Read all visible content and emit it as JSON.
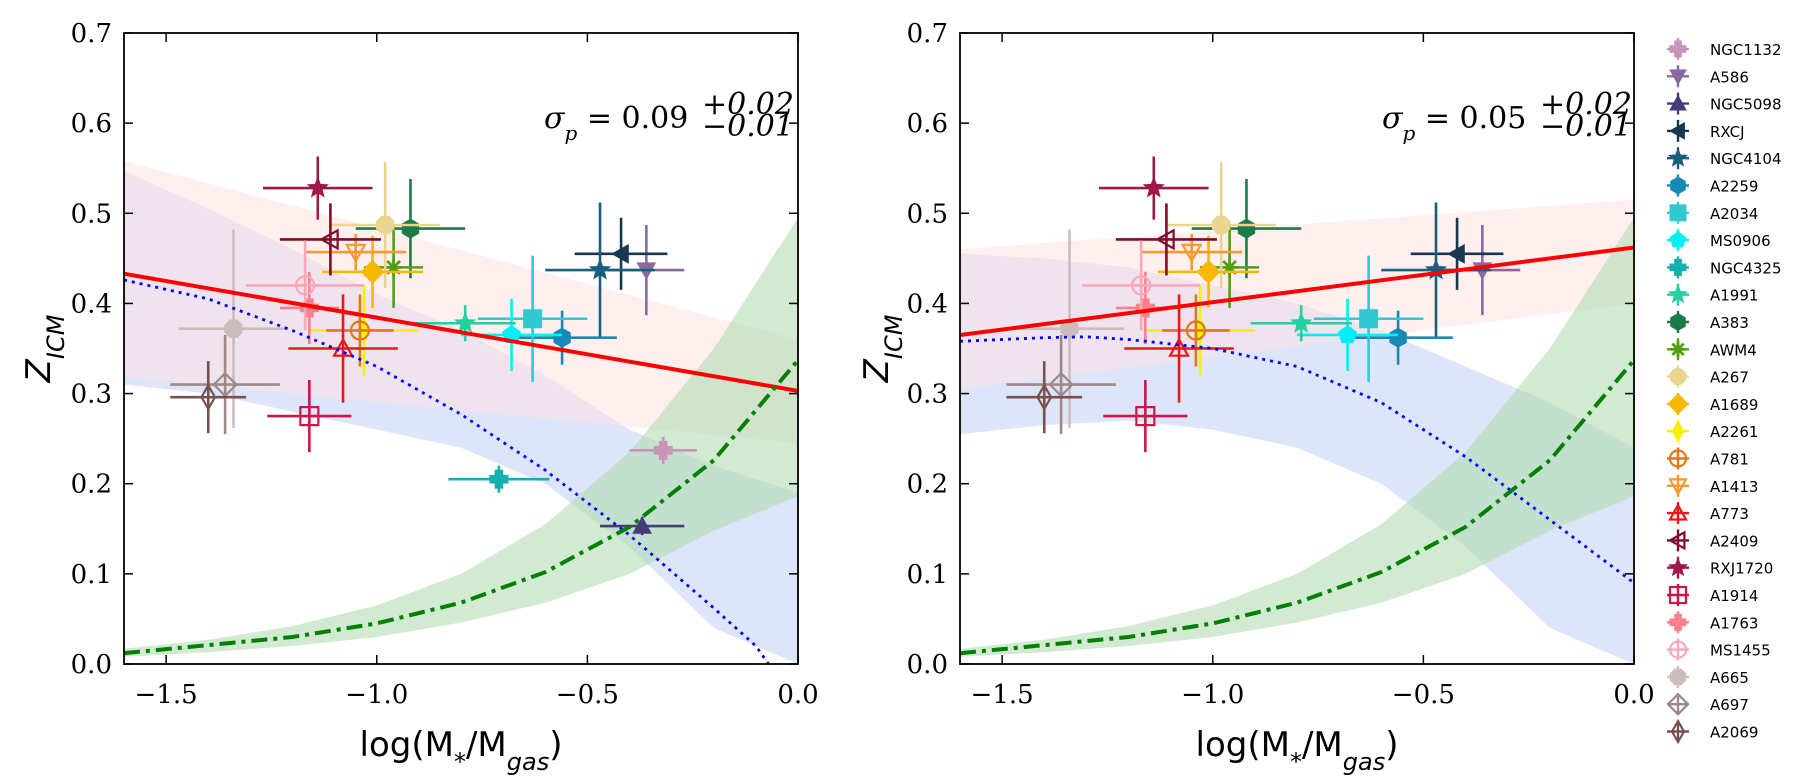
{
  "chart_data": [
    {
      "type": "scatter",
      "panel": "left",
      "xlabel": "log(M*/Mgas)",
      "xlabel_main": "log(M",
      "xlabel_sub1": "*",
      "xlabel_mid": "/M",
      "xlabel_sub2": "gas",
      "xlabel_close": ")",
      "ylabel": "Z_ICM",
      "ylabel_main": "Z",
      "ylabel_sub": "ICM",
      "xlim": [
        -1.6,
        0.0
      ],
      "ylim": [
        0.0,
        0.7
      ],
      "xticks": [
        -1.5,
        -1.0,
        -0.5,
        0.0
      ],
      "xticklabels": [
        "−1.5",
        "−1.0",
        "−0.5",
        "0.0"
      ],
      "yticks": [
        0.0,
        0.1,
        0.2,
        0.3,
        0.4,
        0.5,
        0.6,
        0.7
      ],
      "yticklabels": [
        "0.0",
        "0.1",
        "0.2",
        "0.3",
        "0.4",
        "0.5",
        "0.6",
        "0.7"
      ],
      "annotation": {
        "lhs": "σ",
        "lhs_sub": "p",
        "eq": " = 0.09",
        "sup": "+0.02",
        "sub": "−0.01"
      },
      "red_fit": {
        "x": [
          -1.6,
          0.0
        ],
        "y": [
          0.433,
          0.303
        ]
      },
      "red_band": {
        "x": [
          -1.6,
          0.0
        ],
        "upper": [
          0.558,
          0.36
        ],
        "lower": [
          0.318,
          0.245
        ]
      },
      "blue_curve": {
        "x": [
          -1.6,
          -1.4,
          -1.2,
          -1.0,
          -0.8,
          -0.6,
          -0.4,
          -0.2,
          -0.1,
          -0.07
        ],
        "y": [
          0.426,
          0.405,
          0.37,
          0.33,
          0.277,
          0.215,
          0.143,
          0.062,
          0.02,
          0.0
        ]
      },
      "blue_band": {
        "x": [
          -1.6,
          -1.4,
          -1.2,
          -1.0,
          -0.8,
          -0.6,
          -0.4,
          -0.2,
          0.0
        ],
        "upper": [
          0.547,
          0.505,
          0.46,
          0.41,
          0.37,
          0.32,
          0.26,
          0.22,
          0.19
        ],
        "lower": [
          0.31,
          0.3,
          0.28,
          0.26,
          0.24,
          0.2,
          0.13,
          0.04,
          0.0
        ]
      },
      "green_curve": {
        "x": [
          -1.6,
          -1.4,
          -1.2,
          -1.0,
          -0.8,
          -0.6,
          -0.4,
          -0.2,
          0.0
        ],
        "y": [
          0.012,
          0.021,
          0.03,
          0.045,
          0.068,
          0.102,
          0.152,
          0.226,
          0.337
        ]
      },
      "green_band": {
        "x": [
          -1.6,
          -1.4,
          -1.2,
          -1.0,
          -0.8,
          -0.6,
          -0.4,
          -0.2,
          0.0
        ],
        "upper": [
          0.017,
          0.027,
          0.042,
          0.065,
          0.1,
          0.155,
          0.235,
          0.35,
          0.495
        ],
        "lower": [
          0.008,
          0.013,
          0.02,
          0.03,
          0.046,
          0.068,
          0.1,
          0.148,
          0.186
        ]
      },
      "points": [
        {
          "name": "NGC1132",
          "x": -0.32,
          "y": 0.237,
          "xerr": 0.08,
          "yerr": 0.015
        },
        {
          "name": "A586",
          "x": -0.36,
          "y": 0.437,
          "xerr": 0.09,
          "yerr": 0.05
        },
        {
          "name": "NGC5098",
          "x": -0.37,
          "y": 0.153,
          "xerr": 0.1,
          "yerr": 0.01
        },
        {
          "name": "RXCJ",
          "x": -0.42,
          "y": 0.455,
          "xerr": 0.11,
          "yerr": 0.04
        },
        {
          "name": "NGC4104",
          "x": -0.47,
          "y": 0.437,
          "xerr": 0.13,
          "yerr": 0.075
        },
        {
          "name": "A2259",
          "x": -0.56,
          "y": 0.362,
          "xerr": 0.13,
          "yerr": 0.03
        },
        {
          "name": "A2034",
          "x": -0.63,
          "y": 0.383,
          "xerr": 0.13,
          "yerr": 0.07
        },
        {
          "name": "MS0906",
          "x": -0.68,
          "y": 0.365,
          "xerr": 0.12,
          "yerr": 0.04
        },
        {
          "name": "NGC4325",
          "x": -0.71,
          "y": 0.205,
          "xerr": 0.12,
          "yerr": 0.015
        },
        {
          "name": "A1991",
          "x": -0.79,
          "y": 0.378,
          "xerr": 0.12,
          "yerr": 0.02
        },
        {
          "name": "A383",
          "x": -0.92,
          "y": 0.483,
          "xerr": 0.13,
          "yerr": 0.055
        },
        {
          "name": "AWM4",
          "x": -0.96,
          "y": 0.44,
          "xerr": 0.07,
          "yerr": 0.045
        },
        {
          "name": "A267",
          "x": -0.98,
          "y": 0.487,
          "xerr": 0.13,
          "yerr": 0.07
        },
        {
          "name": "A1689",
          "x": -1.01,
          "y": 0.435,
          "xerr": 0.12,
          "yerr": 0.04
        },
        {
          "name": "A2261",
          "x": -1.03,
          "y": 0.37,
          "xerr": 0.13,
          "yerr": 0.05
        },
        {
          "name": "A781",
          "x": -1.04,
          "y": 0.37,
          "xerr": 0.08,
          "yerr": 0.04
        },
        {
          "name": "A1413",
          "x": -1.05,
          "y": 0.457,
          "xerr": 0.12,
          "yerr": 0.02
        },
        {
          "name": "A773",
          "x": -1.08,
          "y": 0.35,
          "xerr": 0.13,
          "yerr": 0.06
        },
        {
          "name": "A2409",
          "x": -1.11,
          "y": 0.471,
          "xerr": 0.12,
          "yerr": 0.04
        },
        {
          "name": "RXJ1720",
          "x": -1.14,
          "y": 0.528,
          "xerr": 0.13,
          "yerr": 0.035
        },
        {
          "name": "A1914",
          "x": -1.16,
          "y": 0.275,
          "xerr": 0.1,
          "yerr": 0.04
        },
        {
          "name": "A1763",
          "x": -1.16,
          "y": 0.395,
          "xerr": 0.07,
          "yerr": 0.04
        },
        {
          "name": "MS1455",
          "x": -1.17,
          "y": 0.42,
          "xerr": 0.14,
          "yerr": 0.05
        },
        {
          "name": "A665",
          "x": -1.34,
          "y": 0.372,
          "xerr": 0.13,
          "yerr": 0.11
        },
        {
          "name": "A697",
          "x": -1.36,
          "y": 0.31,
          "xerr": 0.13,
          "yerr": 0.055
        },
        {
          "name": "A2069",
          "x": -1.4,
          "y": 0.296,
          "xerr": 0.09,
          "yerr": 0.04
        }
      ]
    },
    {
      "type": "scatter",
      "panel": "right",
      "xlabel": "log(M*/Mgas)",
      "xlabel_main": "log(M",
      "xlabel_sub1": "*",
      "xlabel_mid": "/M",
      "xlabel_sub2": "gas",
      "xlabel_close": ")",
      "ylabel": "Z_ICM",
      "ylabel_main": "Z",
      "ylabel_sub": "ICM",
      "xlim": [
        -1.6,
        0.0
      ],
      "ylim": [
        0.0,
        0.7
      ],
      "xticks": [
        -1.5,
        -1.0,
        -0.5,
        0.0
      ],
      "xticklabels": [
        "−1.5",
        "−1.0",
        "−0.5",
        "0.0"
      ],
      "yticks": [
        0.0,
        0.1,
        0.2,
        0.3,
        0.4,
        0.5,
        0.6,
        0.7
      ],
      "yticklabels": [
        "0.0",
        "0.1",
        "0.2",
        "0.3",
        "0.4",
        "0.5",
        "0.6",
        "0.7"
      ],
      "annotation": {
        "lhs": "σ",
        "lhs_sub": "p",
        "eq": " = 0.05",
        "sup": "+0.02",
        "sub": "−0.01"
      },
      "red_fit": {
        "x": [
          -1.6,
          0.0
        ],
        "y": [
          0.365,
          0.462
        ]
      },
      "red_band": {
        "x": [
          -1.6,
          0.0
        ],
        "upper": [
          0.46,
          0.515
        ],
        "lower": [
          0.305,
          0.4
        ]
      },
      "blue_curve": {
        "x": [
          -1.6,
          -1.4,
          -1.3,
          -1.2,
          -1.0,
          -0.8,
          -0.6,
          -0.4,
          -0.2,
          0.0
        ],
        "y": [
          0.358,
          0.362,
          0.363,
          0.36,
          0.35,
          0.33,
          0.29,
          0.23,
          0.16,
          0.09
        ]
      },
      "blue_band": {
        "x": [
          -1.6,
          -1.4,
          -1.2,
          -1.0,
          -0.8,
          -0.6,
          -0.4,
          -0.2,
          0.0
        ],
        "upper": [
          0.455,
          0.45,
          0.44,
          0.42,
          0.4,
          0.37,
          0.33,
          0.29,
          0.24
        ],
        "lower": [
          0.255,
          0.265,
          0.27,
          0.26,
          0.24,
          0.2,
          0.13,
          0.04,
          0.0
        ]
      },
      "green_curve": {
        "x": [
          -1.6,
          -1.4,
          -1.2,
          -1.0,
          -0.8,
          -0.6,
          -0.4,
          -0.2,
          0.0
        ],
        "y": [
          0.012,
          0.021,
          0.03,
          0.045,
          0.068,
          0.102,
          0.152,
          0.226,
          0.337
        ]
      },
      "green_band": {
        "x": [
          -1.6,
          -1.4,
          -1.2,
          -1.0,
          -0.8,
          -0.6,
          -0.4,
          -0.2,
          0.0
        ],
        "upper": [
          0.017,
          0.027,
          0.042,
          0.065,
          0.1,
          0.155,
          0.235,
          0.35,
          0.495
        ],
        "lower": [
          0.008,
          0.013,
          0.02,
          0.03,
          0.046,
          0.068,
          0.1,
          0.148,
          0.186
        ]
      },
      "points": [
        {
          "name": "A586",
          "x": -0.36,
          "y": 0.437,
          "xerr": 0.09,
          "yerr": 0.05
        },
        {
          "name": "RXCJ",
          "x": -0.42,
          "y": 0.455,
          "xerr": 0.11,
          "yerr": 0.04
        },
        {
          "name": "NGC4104",
          "x": -0.47,
          "y": 0.437,
          "xerr": 0.13,
          "yerr": 0.075
        },
        {
          "name": "A2259",
          "x": -0.56,
          "y": 0.362,
          "xerr": 0.13,
          "yerr": 0.03
        },
        {
          "name": "A2034",
          "x": -0.63,
          "y": 0.383,
          "xerr": 0.13,
          "yerr": 0.07
        },
        {
          "name": "MS0906",
          "x": -0.68,
          "y": 0.365,
          "xerr": 0.12,
          "yerr": 0.04
        },
        {
          "name": "A1991",
          "x": -0.79,
          "y": 0.378,
          "xerr": 0.12,
          "yerr": 0.02
        },
        {
          "name": "A383",
          "x": -0.92,
          "y": 0.483,
          "xerr": 0.13,
          "yerr": 0.055
        },
        {
          "name": "AWM4",
          "x": -0.96,
          "y": 0.44,
          "xerr": 0.07,
          "yerr": 0.045
        },
        {
          "name": "A267",
          "x": -0.98,
          "y": 0.487,
          "xerr": 0.13,
          "yerr": 0.07
        },
        {
          "name": "A1689",
          "x": -1.01,
          "y": 0.435,
          "xerr": 0.12,
          "yerr": 0.04
        },
        {
          "name": "A2261",
          "x": -1.03,
          "y": 0.37,
          "xerr": 0.13,
          "yerr": 0.05
        },
        {
          "name": "A781",
          "x": -1.04,
          "y": 0.37,
          "xerr": 0.08,
          "yerr": 0.04
        },
        {
          "name": "A1413",
          "x": -1.05,
          "y": 0.457,
          "xerr": 0.12,
          "yerr": 0.02
        },
        {
          "name": "A773",
          "x": -1.08,
          "y": 0.35,
          "xerr": 0.13,
          "yerr": 0.06
        },
        {
          "name": "A2409",
          "x": -1.11,
          "y": 0.471,
          "xerr": 0.12,
          "yerr": 0.04
        },
        {
          "name": "RXJ1720",
          "x": -1.14,
          "y": 0.528,
          "xerr": 0.13,
          "yerr": 0.035
        },
        {
          "name": "A1914",
          "x": -1.16,
          "y": 0.275,
          "xerr": 0.1,
          "yerr": 0.04
        },
        {
          "name": "A1763",
          "x": -1.16,
          "y": 0.395,
          "xerr": 0.07,
          "yerr": 0.04
        },
        {
          "name": "MS1455",
          "x": -1.17,
          "y": 0.42,
          "xerr": 0.14,
          "yerr": 0.05
        },
        {
          "name": "A665",
          "x": -1.34,
          "y": 0.372,
          "xerr": 0.13,
          "yerr": 0.11
        },
        {
          "name": "A697",
          "x": -1.36,
          "y": 0.31,
          "xerr": 0.13,
          "yerr": 0.055
        },
        {
          "name": "A2069",
          "x": -1.4,
          "y": 0.296,
          "xerr": 0.09,
          "yerr": 0.04
        }
      ]
    }
  ],
  "legend": {
    "placement": "right",
    "entries": [
      {
        "name": "NGC1132",
        "color": "#c994b6",
        "marker": "plus-filled"
      },
      {
        "name": "A586",
        "color": "#8a6a9e",
        "marker": "triangle-down"
      },
      {
        "name": "NGC5098",
        "color": "#463a78",
        "marker": "triangle-up"
      },
      {
        "name": "RXCJ",
        "color": "#17384e",
        "marker": "triangle-left"
      },
      {
        "name": "NGC4104",
        "color": "#1a5e7e",
        "marker": "star"
      },
      {
        "name": "A2259",
        "color": "#1888b5",
        "marker": "hexagon"
      },
      {
        "name": "A2034",
        "color": "#32c8d0",
        "marker": "square"
      },
      {
        "name": "MS0906",
        "color": "#00f0f8",
        "marker": "pentagon"
      },
      {
        "name": "NGC4325",
        "color": "#12b0b0",
        "marker": "plus-filled"
      },
      {
        "name": "A1991",
        "color": "#22d0a0",
        "marker": "star"
      },
      {
        "name": "A383",
        "color": "#1e7a48",
        "marker": "hexagon"
      },
      {
        "name": "AWM4",
        "color": "#50a010",
        "marker": "asterisk"
      },
      {
        "name": "A267",
        "color": "#ead590",
        "marker": "octagon"
      },
      {
        "name": "A1689",
        "color": "#f8b800",
        "marker": "diamond"
      },
      {
        "name": "A2261",
        "color": "#f8f000",
        "marker": "thin-diamond"
      },
      {
        "name": "A781",
        "color": "#e07818",
        "marker": "circle-plus-open"
      },
      {
        "name": "A1413",
        "color": "#f89830",
        "marker": "triangle-down-open"
      },
      {
        "name": "A773",
        "color": "#e81818",
        "marker": "triangle-up-open"
      },
      {
        "name": "A2409",
        "color": "#800c28",
        "marker": "triangle-left-open"
      },
      {
        "name": "RXJ1720",
        "color": "#a01848",
        "marker": "star"
      },
      {
        "name": "A1914",
        "color": "#c81848",
        "marker": "square-plus-open"
      },
      {
        "name": "A1763",
        "color": "#f8808c",
        "marker": "plus-filled"
      },
      {
        "name": "MS1455",
        "color": "#f8a8b8",
        "marker": "circle-plus-open"
      },
      {
        "name": "A665",
        "color": "#cdbcbc",
        "marker": "octagon"
      },
      {
        "name": "A697",
        "color": "#a08888",
        "marker": "diamond-plus-open"
      },
      {
        "name": "A2069",
        "color": "#785050",
        "marker": "thin-diamond-plus-open"
      }
    ]
  },
  "colors": {
    "red_fit": "#ff0000",
    "red_band": "#ffe1e1",
    "blue_curve": "#0000ff",
    "blue_band": "#c4d4f6",
    "green_curve": "#008000",
    "green_band": "#b2dcb2"
  }
}
